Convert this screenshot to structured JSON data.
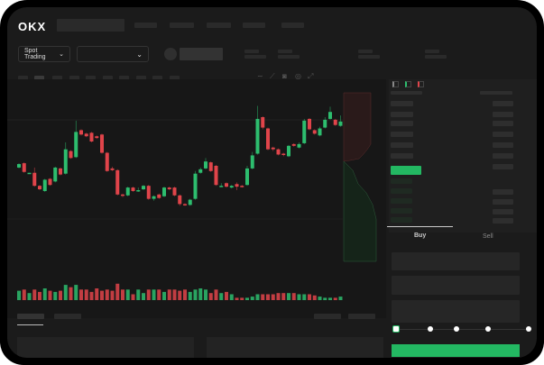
{
  "header": {
    "logo": "OKX",
    "market_dropdown": "Spot Trading",
    "dropdown_chevron": "⌄"
  },
  "colors": {
    "up": "#2dbd6e",
    "down": "#e0444a",
    "accent": "#23b862",
    "background": "#1b1b1b"
  },
  "toolbar": {
    "icons": [
      "line-icon",
      "ruler-icon",
      "camera-icon",
      "settings-icon",
      "fullscreen-icon"
    ]
  },
  "orderbook": {
    "view_icons": [
      "both-sides-icon",
      "bids-only-icon",
      "asks-only-icon"
    ]
  },
  "trade_panel": {
    "tabs": [
      {
        "label": "Buy",
        "active": true
      },
      {
        "label": "Sell",
        "active": false
      }
    ],
    "slider_percent": 0,
    "slider_steps": [
      0,
      25,
      50,
      75,
      100
    ]
  },
  "chart_data": {
    "type": "candlestick",
    "candles": [
      [
        114,
        118,
        119,
        113
      ],
      [
        119,
        109,
        120,
        108
      ],
      [
        107,
        108,
        108,
        107
      ],
      [
        108,
        93,
        114,
        92
      ],
      [
        93,
        89,
        94,
        88
      ],
      [
        87,
        100,
        101,
        86
      ],
      [
        101,
        94,
        102,
        93
      ],
      [
        98,
        114,
        115,
        97
      ],
      [
        113,
        106,
        114,
        105
      ],
      [
        107,
        135,
        143,
        106
      ],
      [
        133,
        125,
        134,
        124
      ],
      [
        126,
        155,
        168,
        125
      ],
      [
        157,
        152,
        158,
        151
      ],
      [
        153,
        150,
        154,
        149
      ],
      [
        154,
        144,
        155,
        143
      ],
      [
        150,
        148,
        151,
        147
      ],
      [
        152,
        131,
        153,
        130
      ],
      [
        131,
        110,
        132,
        109
      ],
      [
        113,
        111,
        115,
        110
      ],
      [
        111,
        83,
        112,
        82
      ],
      [
        83,
        82,
        84,
        80
      ],
      [
        82,
        91,
        92,
        81
      ],
      [
        91,
        87,
        92,
        86
      ],
      [
        88,
        88,
        91,
        86
      ],
      [
        89,
        93,
        94,
        88
      ],
      [
        93,
        78,
        94,
        77
      ],
      [
        78,
        81,
        82,
        76
      ],
      [
        83,
        79,
        84,
        78
      ],
      [
        81,
        91,
        92,
        80
      ],
      [
        91,
        89,
        92,
        88
      ],
      [
        91,
        82,
        92,
        81
      ],
      [
        82,
        72,
        83,
        70
      ],
      [
        72,
        71,
        73,
        70
      ],
      [
        71,
        77,
        78,
        70
      ],
      [
        78,
        107,
        110,
        77
      ],
      [
        108,
        112,
        114,
        107
      ],
      [
        113,
        121,
        125,
        112
      ],
      [
        120,
        110,
        121,
        109
      ],
      [
        116,
        94,
        117,
        93
      ],
      [
        93,
        93,
        96,
        92
      ],
      [
        96,
        92,
        97,
        91
      ],
      [
        91,
        93,
        94,
        90
      ],
      [
        95,
        92,
        97,
        88
      ],
      [
        93,
        92,
        94,
        91
      ],
      [
        94,
        113,
        116,
        93
      ],
      [
        113,
        128,
        132,
        112
      ],
      [
        130,
        170,
        185,
        129
      ],
      [
        172,
        160,
        173,
        158
      ],
      [
        159,
        135,
        160,
        134
      ],
      [
        137,
        135,
        138,
        133
      ],
      [
        135,
        129,
        136,
        128
      ],
      [
        130,
        129,
        131,
        127
      ],
      [
        127,
        139,
        140,
        126
      ],
      [
        141,
        139,
        142,
        138
      ],
      [
        137,
        141,
        143,
        136
      ],
      [
        142,
        168,
        170,
        141
      ],
      [
        170,
        158,
        171,
        157
      ],
      [
        157,
        153,
        158,
        152
      ],
      [
        151,
        159,
        161,
        150
      ],
      [
        160,
        169,
        172,
        159
      ],
      [
        170,
        178,
        184,
        169
      ],
      [
        169,
        163,
        170,
        162
      ],
      [
        162,
        167,
        174,
        161
      ]
    ],
    "volume": [
      8,
      9,
      6,
      9,
      7,
      10,
      8,
      7,
      8,
      13,
      11,
      13,
      9,
      9,
      7,
      10,
      8,
      9,
      8,
      14,
      9,
      9,
      5,
      9,
      6,
      9,
      9,
      9,
      7,
      9,
      9,
      8,
      9,
      7,
      9,
      10,
      9,
      6,
      9,
      6,
      7,
      5,
      2,
      2,
      2,
      3,
      5,
      5,
      5,
      5,
      6,
      6,
      6,
      6,
      5,
      5,
      5,
      4,
      3,
      2,
      2,
      2,
      3
    ],
    "orderbook_depth": {
      "asks": "upper-red",
      "bids": "lower-green"
    }
  }
}
